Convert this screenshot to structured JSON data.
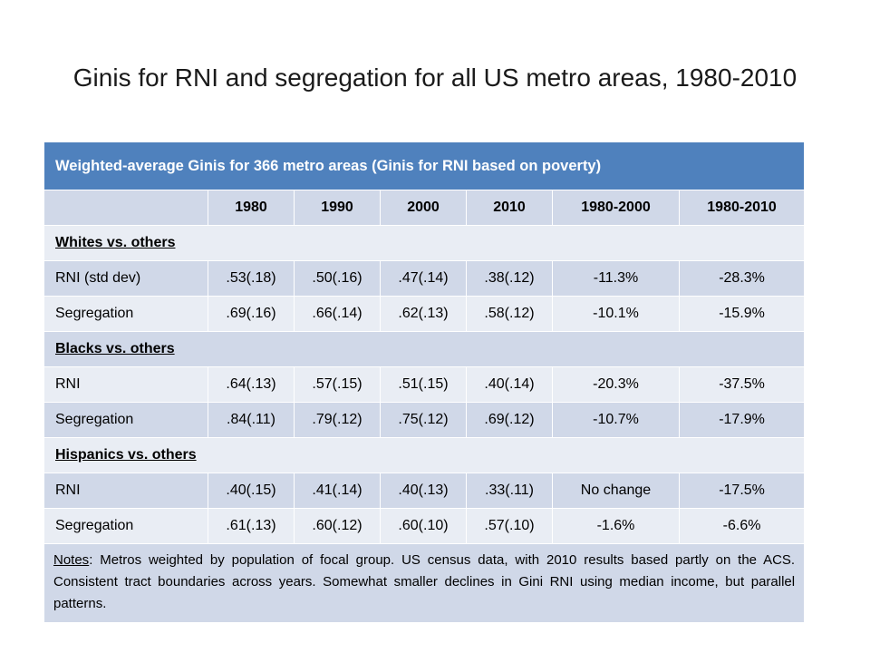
{
  "title": "Ginis for RNI and segregation for all US metro areas, 1980-2010",
  "table": {
    "caption": "Weighted-average Ginis for 366 metro areas (Ginis for RNI based on poverty)",
    "columns": [
      "",
      "1980",
      "1990",
      "2000",
      "2010",
      "1980-2000",
      "1980-2010"
    ],
    "sections": [
      {
        "heading": "Whites vs. others",
        "rows": [
          {
            "label": "RNI (std dev)",
            "cells": [
              ".53(.18)",
              ".50(.16)",
              ".47(.14)",
              ".38(.12)",
              "-11.3%",
              "-28.3%"
            ]
          },
          {
            "label": "Segregation",
            "cells": [
              ".69(.16)",
              ".66(.14)",
              ".62(.13)",
              ".58(.12)",
              "-10.1%",
              "-15.9%"
            ]
          }
        ]
      },
      {
        "heading": "Blacks vs. others",
        "rows": [
          {
            "label": "RNI",
            "cells": [
              ".64(.13)",
              ".57(.15)",
              ".51(.15)",
              ".40(.14)",
              "-20.3%",
              "-37.5%"
            ]
          },
          {
            "label": "Segregation",
            "cells": [
              ".84(.11)",
              ".79(.12)",
              ".75(.12)",
              ".69(.12)",
              "-10.7%",
              "-17.9%"
            ]
          }
        ]
      },
      {
        "heading": "Hispanics vs. others",
        "rows": [
          {
            "label": "RNI",
            "cells": [
              ".40(.15)",
              ".41(.14)",
              ".40(.13)",
              ".33(.11)",
              "No change",
              "-17.5%"
            ]
          },
          {
            "label": "Segregation",
            "cells": [
              ".61(.13)",
              ".60(.12)",
              ".60(.10)",
              ".57(.10)",
              "-1.6%",
              "-6.6%"
            ]
          }
        ]
      }
    ],
    "notes_label": "Notes",
    "notes_text": ": Metros weighted by population of focal group.  US census data, with 2010 results based partly on the ACS.  Consistent tract boundaries across years.  Somewhat smaller declines in Gini RNI using median income, but parallel patterns."
  }
}
